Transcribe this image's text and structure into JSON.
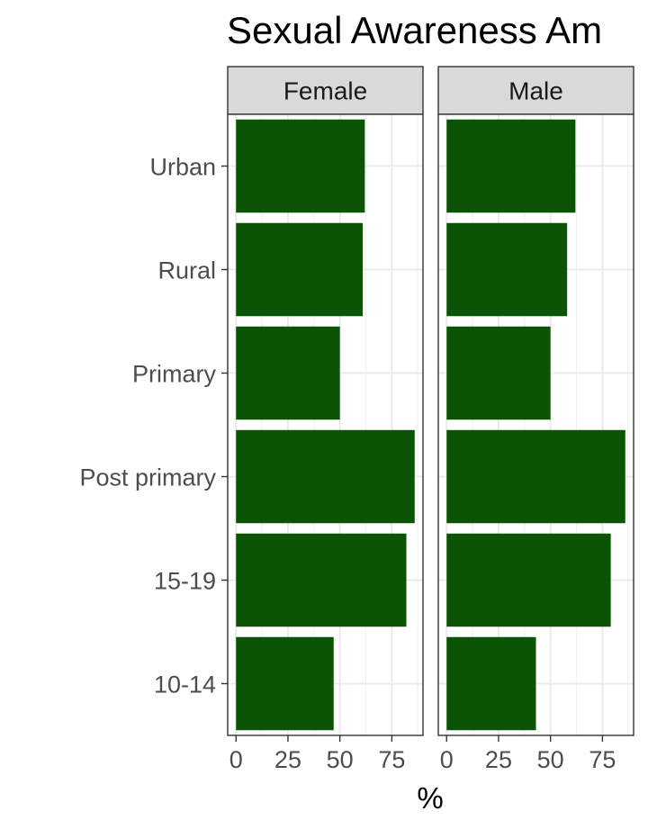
{
  "chart_data": {
    "type": "bar",
    "orientation": "horizontal",
    "title": "Sexual Awareness Am",
    "xlabel": "%",
    "ylabel": "",
    "categories": [
      "Urban",
      "Rural",
      "Primary",
      "Post primary",
      "15-19",
      "10-14"
    ],
    "x_ticks": [
      0,
      25,
      50,
      75
    ],
    "xlim": [
      -4,
      90
    ],
    "panels": [
      {
        "name": "Female",
        "values": [
          62,
          61,
          50,
          86,
          82,
          47
        ]
      },
      {
        "name": "Male",
        "values": [
          62,
          58,
          50,
          86,
          79,
          43
        ]
      }
    ],
    "bar_color": "#0c5405",
    "strip_color": "#d9d9d9",
    "grid": true
  }
}
